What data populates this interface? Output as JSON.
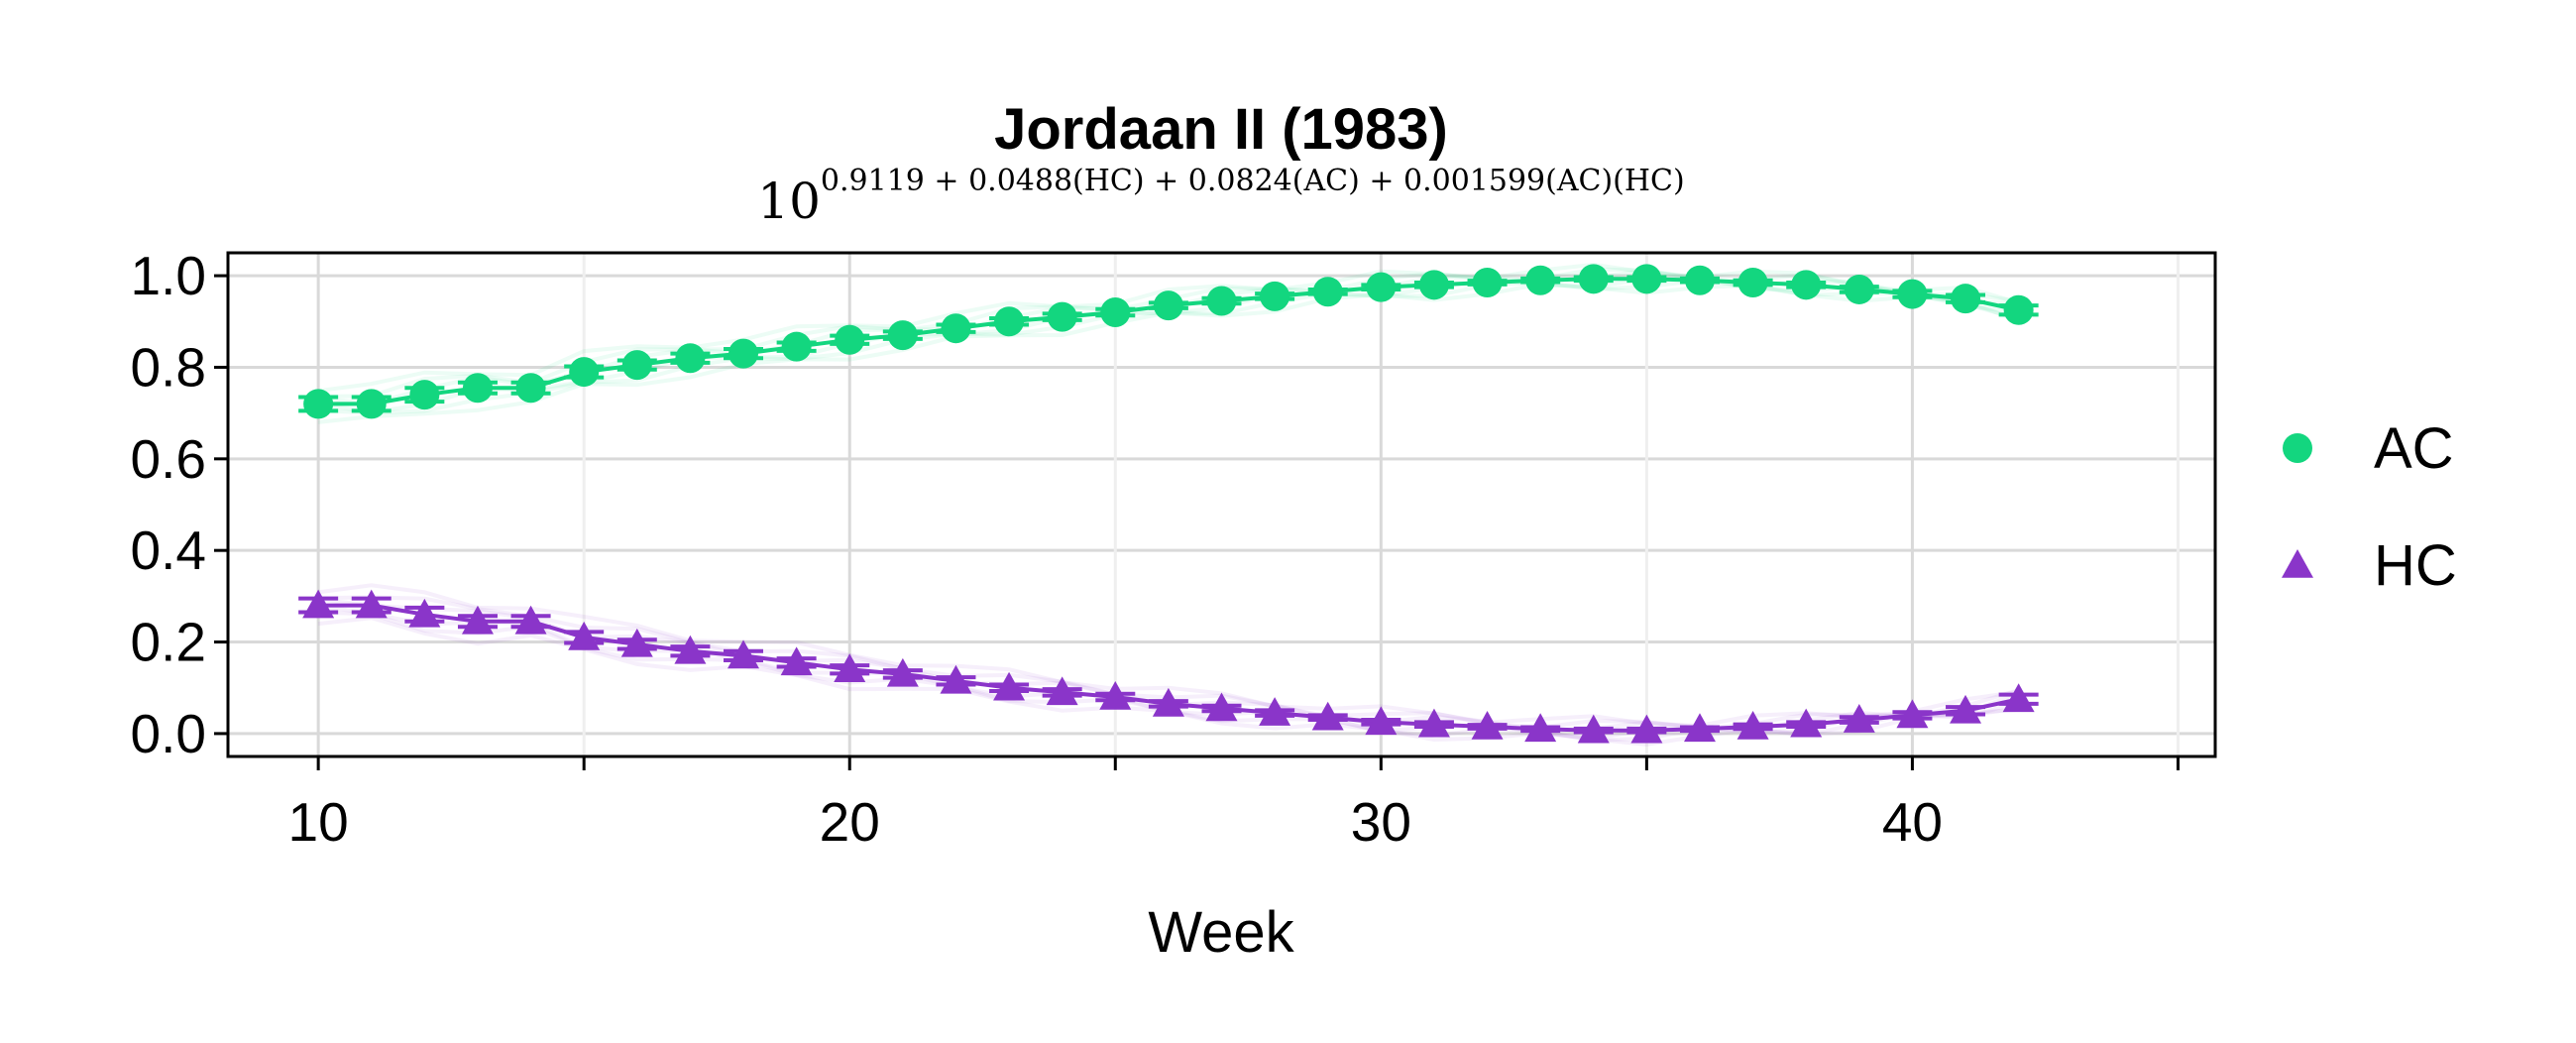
{
  "chart_data": {
    "type": "scatter",
    "title": "Jordaan II (1983)",
    "subtitle": {
      "base": "10",
      "exponent": "0.9119 + 0.0488(HC) + 0.0824(AC) + 0.001599(AC)(HC)"
    },
    "xlabel": "Week",
    "ylabel": "",
    "xlim": [
      8.3,
      45.7
    ],
    "ylim": [
      -0.05,
      1.05
    ],
    "x_ticks": [
      10,
      20,
      30,
      40
    ],
    "x_minor_ticks": [
      15,
      25,
      35,
      45
    ],
    "y_ticks": [
      0.0,
      0.2,
      0.4,
      0.6,
      0.8,
      1.0
    ],
    "y_tick_labels": [
      "0.0",
      "0.2",
      "0.4",
      "0.6",
      "0.8",
      "1.0"
    ],
    "grid": true,
    "legend_position": "right",
    "x": [
      10,
      11,
      12,
      13,
      14,
      15,
      16,
      17,
      18,
      19,
      20,
      21,
      22,
      23,
      24,
      25,
      26,
      27,
      28,
      29,
      30,
      31,
      32,
      33,
      34,
      35,
      36,
      37,
      38,
      39,
      40,
      41,
      42
    ],
    "series": [
      {
        "name": "AC",
        "marker": "circle",
        "color": "#13d67f",
        "values": [
          0.72,
          0.72,
          0.74,
          0.755,
          0.755,
          0.79,
          0.805,
          0.82,
          0.83,
          0.845,
          0.86,
          0.87,
          0.885,
          0.9,
          0.91,
          0.92,
          0.935,
          0.945,
          0.955,
          0.965,
          0.975,
          0.98,
          0.985,
          0.99,
          0.993,
          0.993,
          0.99,
          0.985,
          0.98,
          0.97,
          0.96,
          0.95,
          0.925
        ],
        "errors": [
          0.015,
          0.015,
          0.015,
          0.012,
          0.012,
          0.012,
          0.01,
          0.01,
          0.01,
          0.009,
          0.009,
          0.008,
          0.008,
          0.007,
          0.007,
          0.007,
          0.006,
          0.006,
          0.006,
          0.005,
          0.005,
          0.005,
          0.004,
          0.004,
          0.004,
          0.004,
          0.004,
          0.005,
          0.005,
          0.006,
          0.007,
          0.008,
          0.01
        ]
      },
      {
        "name": "HC",
        "marker": "triangle",
        "color": "#8a35c9",
        "values": [
          0.28,
          0.28,
          0.26,
          0.245,
          0.245,
          0.21,
          0.195,
          0.18,
          0.17,
          0.155,
          0.14,
          0.13,
          0.115,
          0.1,
          0.09,
          0.08,
          0.065,
          0.055,
          0.045,
          0.035,
          0.025,
          0.02,
          0.015,
          0.01,
          0.007,
          0.007,
          0.01,
          0.015,
          0.02,
          0.03,
          0.04,
          0.05,
          0.075
        ],
        "errors": [
          0.015,
          0.015,
          0.015,
          0.012,
          0.012,
          0.012,
          0.01,
          0.01,
          0.01,
          0.009,
          0.009,
          0.008,
          0.008,
          0.007,
          0.007,
          0.007,
          0.006,
          0.006,
          0.006,
          0.005,
          0.005,
          0.005,
          0.004,
          0.004,
          0.004,
          0.004,
          0.004,
          0.005,
          0.005,
          0.006,
          0.007,
          0.008,
          0.01
        ]
      }
    ]
  }
}
